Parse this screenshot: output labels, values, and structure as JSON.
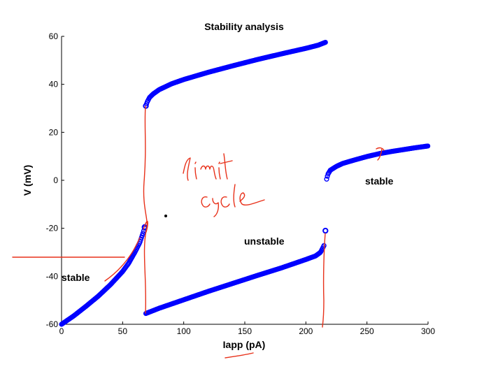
{
  "chart_data": {
    "type": "scatter",
    "title": "Stability analysis",
    "xlabel": "Iapp (pA)",
    "ylabel": "V (mV)",
    "xlim": [
      0,
      300
    ],
    "ylim": [
      -60,
      60
    ],
    "xticks": [
      0,
      50,
      100,
      150,
      200,
      250,
      300
    ],
    "yticks": [
      -60,
      -40,
      -20,
      0,
      20,
      40,
      60
    ],
    "marker": "circle",
    "colors": {
      "points": "#0000ff",
      "annotations": "#e8311a"
    },
    "series": [
      {
        "x": [
          0,
          10,
          20,
          30,
          40,
          50,
          55,
          60,
          64,
          67,
          68
        ],
        "y": [
          -60,
          -56.5,
          -52.5,
          -48.3,
          -43.5,
          -38,
          -34.5,
          -30,
          -26,
          -21.5,
          -19.5
        ]
      },
      {
        "x": [
          69,
          70,
          72,
          75,
          80,
          90,
          100,
          120,
          140,
          160,
          180,
          200,
          210,
          216
        ],
        "y": [
          31,
          32.5,
          34.5,
          36,
          37.8,
          40.2,
          42,
          45,
          47.7,
          50.3,
          52.7,
          55,
          56.3,
          57.5
        ]
      },
      {
        "x": [
          69,
          80,
          100,
          120,
          140,
          160,
          180,
          200,
          208,
          212,
          215
        ],
        "y": [
          -55.5,
          -53.3,
          -49.8,
          -46.3,
          -43,
          -39.7,
          -36.5,
          -33,
          -31.5,
          -30,
          -27
        ]
      },
      {
        "x": [
          217,
          218,
          220,
          225,
          230,
          240,
          250,
          260,
          270,
          280,
          290,
          300
        ],
        "y": [
          0.5,
          2.5,
          4.2,
          5.8,
          7,
          8.5,
          9.9,
          11.1,
          12,
          12.8,
          13.6,
          14.3
        ]
      }
    ],
    "isolated_points": [
      {
        "x": 68,
        "y": -19.5
      },
      {
        "x": 216,
        "y": -21
      },
      {
        "x": 69,
        "y": 31
      }
    ],
    "annotations": [
      {
        "text": "stable",
        "x": 0,
        "y": -40
      },
      {
        "text": "unstable",
        "x": 150,
        "y": -25
      },
      {
        "text": "stable",
        "x": 260,
        "y": 0
      }
    ],
    "handwritten_note": "limit cycle"
  }
}
